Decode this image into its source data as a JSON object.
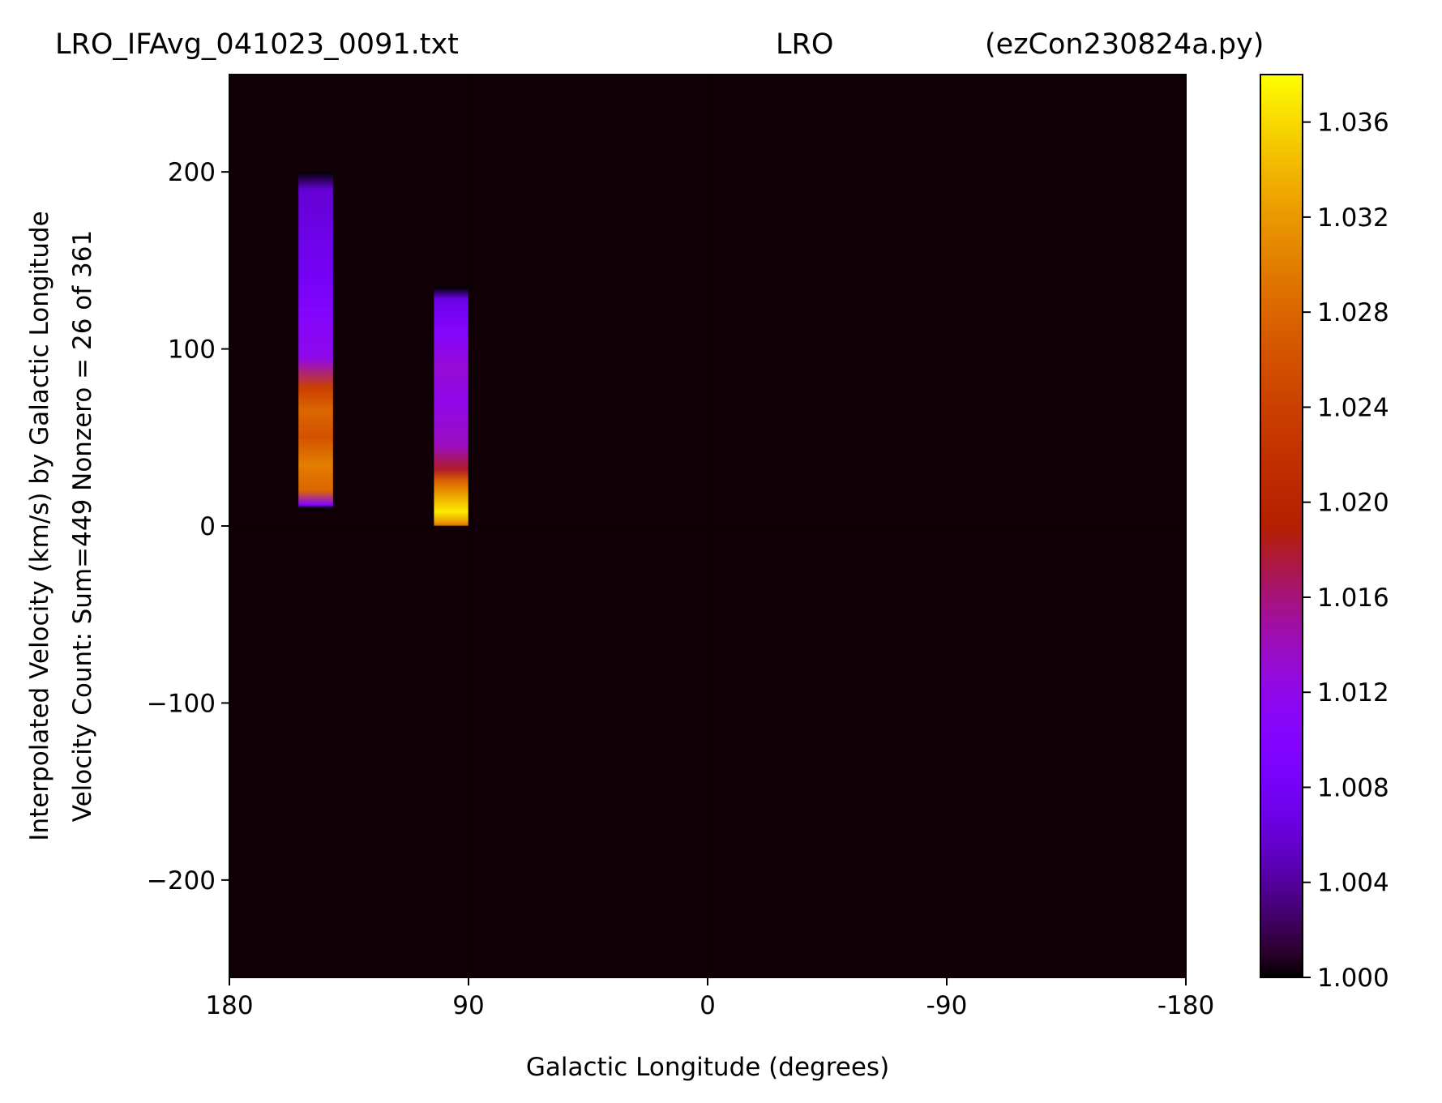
{
  "title": {
    "left": "LRO_IFAvg_041023_0091.txt",
    "center": "LRO",
    "right": "(ezCon230824a.py)"
  },
  "chart_data": {
    "type": "heatmap",
    "colormap": "gnuplot",
    "xlabel": "Galactic Longitude (degrees)",
    "ylabel_line1": "Interpolated Velocity (km/s) by Galactic Longitude",
    "ylabel_line2": "Velocity Count: Sum=449 Nonzero = 26 of 361",
    "xlim": [
      180,
      -180
    ],
    "ylim": [
      -255,
      255
    ],
    "x_ticks": [
      {
        "value": 180,
        "label": "180"
      },
      {
        "value": 90,
        "label": "90"
      },
      {
        "value": 0,
        "label": "0"
      },
      {
        "value": -90,
        "label": "-90"
      },
      {
        "value": -180,
        "label": "-180"
      }
    ],
    "y_ticks": [
      {
        "value": 200,
        "label": "200"
      },
      {
        "value": 100,
        "label": "100"
      },
      {
        "value": 0,
        "label": "0"
      },
      {
        "value": -100,
        "label": "−100"
      },
      {
        "value": -200,
        "label": "−200"
      }
    ],
    "background_value": 1.0,
    "colorbar": {
      "range": [
        1.0,
        1.038
      ],
      "ticks": [
        {
          "value": 1.036,
          "label": "1.036"
        },
        {
          "value": 1.032,
          "label": "1.032"
        },
        {
          "value": 1.028,
          "label": "1.028"
        },
        {
          "value": 1.024,
          "label": "1.024"
        },
        {
          "value": 1.02,
          "label": "1.020"
        },
        {
          "value": 1.016,
          "label": "1.016"
        },
        {
          "value": 1.012,
          "label": "1.012"
        },
        {
          "value": 1.008,
          "label": "1.008"
        },
        {
          "value": 1.004,
          "label": "1.004"
        },
        {
          "value": 1.0,
          "label": "1.000"
        }
      ]
    },
    "columns": [
      {
        "lon_range": [
          154,
          141
        ],
        "profile": [
          {
            "v": 200,
            "value": 1.0
          },
          {
            "v": 190,
            "value": 1.006
          },
          {
            "v": 140,
            "value": 1.008
          },
          {
            "v": 120,
            "value": 1.01
          },
          {
            "v": 95,
            "value": 1.012
          },
          {
            "v": 78,
            "value": 1.024
          },
          {
            "v": 65,
            "value": 1.028
          },
          {
            "v": 50,
            "value": 1.026
          },
          {
            "v": 35,
            "value": 1.03
          },
          {
            "v": 20,
            "value": 1.028
          },
          {
            "v": 12,
            "value": 1.01
          },
          {
            "v": 10,
            "value": 1.0
          }
        ]
      },
      {
        "lon_range": [
          103,
          90
        ],
        "profile": [
          {
            "v": 135,
            "value": 1.0
          },
          {
            "v": 128,
            "value": 1.007
          },
          {
            "v": 110,
            "value": 1.01
          },
          {
            "v": 90,
            "value": 1.013
          },
          {
            "v": 70,
            "value": 1.012
          },
          {
            "v": 45,
            "value": 1.014
          },
          {
            "v": 32,
            "value": 1.018
          },
          {
            "v": 25,
            "value": 1.028
          },
          {
            "v": 15,
            "value": 1.034
          },
          {
            "v": 8,
            "value": 1.037
          },
          {
            "v": 2,
            "value": 1.032
          },
          {
            "v": 0,
            "value": 1.028
          }
        ]
      }
    ]
  }
}
